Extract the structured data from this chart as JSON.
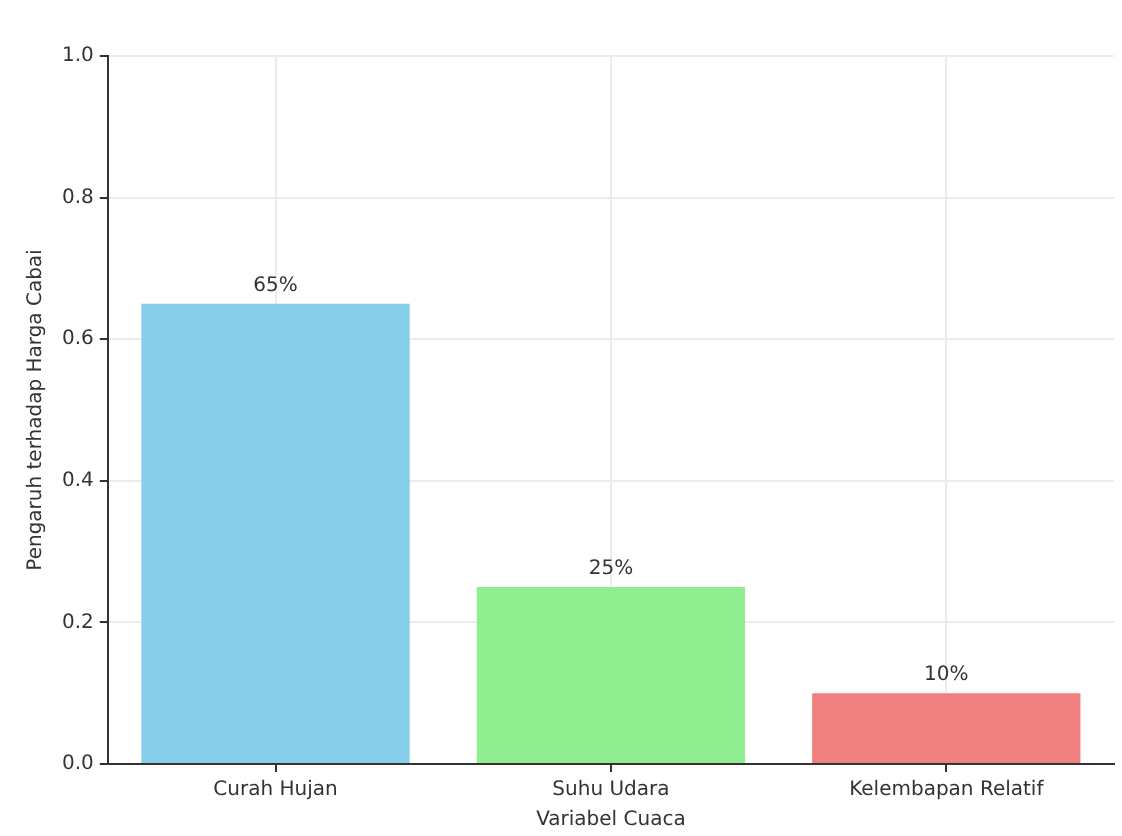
{
  "chart_data": {
    "type": "bar",
    "xlabel": "Variabel Cuaca",
    "ylabel": "Pengaruh terhadap Harga Cabai",
    "categories": [
      "Curah Hujan",
      "Suhu Udara",
      "Kelembapan Relatif"
    ],
    "values": [
      0.65,
      0.25,
      0.1
    ],
    "value_labels": [
      "65%",
      "25%",
      "10%"
    ],
    "colors": [
      "#87ceeb",
      "#90ee90",
      "#f08080"
    ],
    "ylim": [
      0,
      1
    ],
    "yticks": [
      {
        "value": 0,
        "label": "0.0"
      },
      {
        "value": 0.2,
        "label": "0.2"
      },
      {
        "value": 0.4,
        "label": "0.4"
      },
      {
        "value": 0.6,
        "label": "0.6"
      },
      {
        "value": 0.8,
        "label": "0.8"
      },
      {
        "value": 1,
        "label": "1.0"
      }
    ],
    "grid": true
  }
}
